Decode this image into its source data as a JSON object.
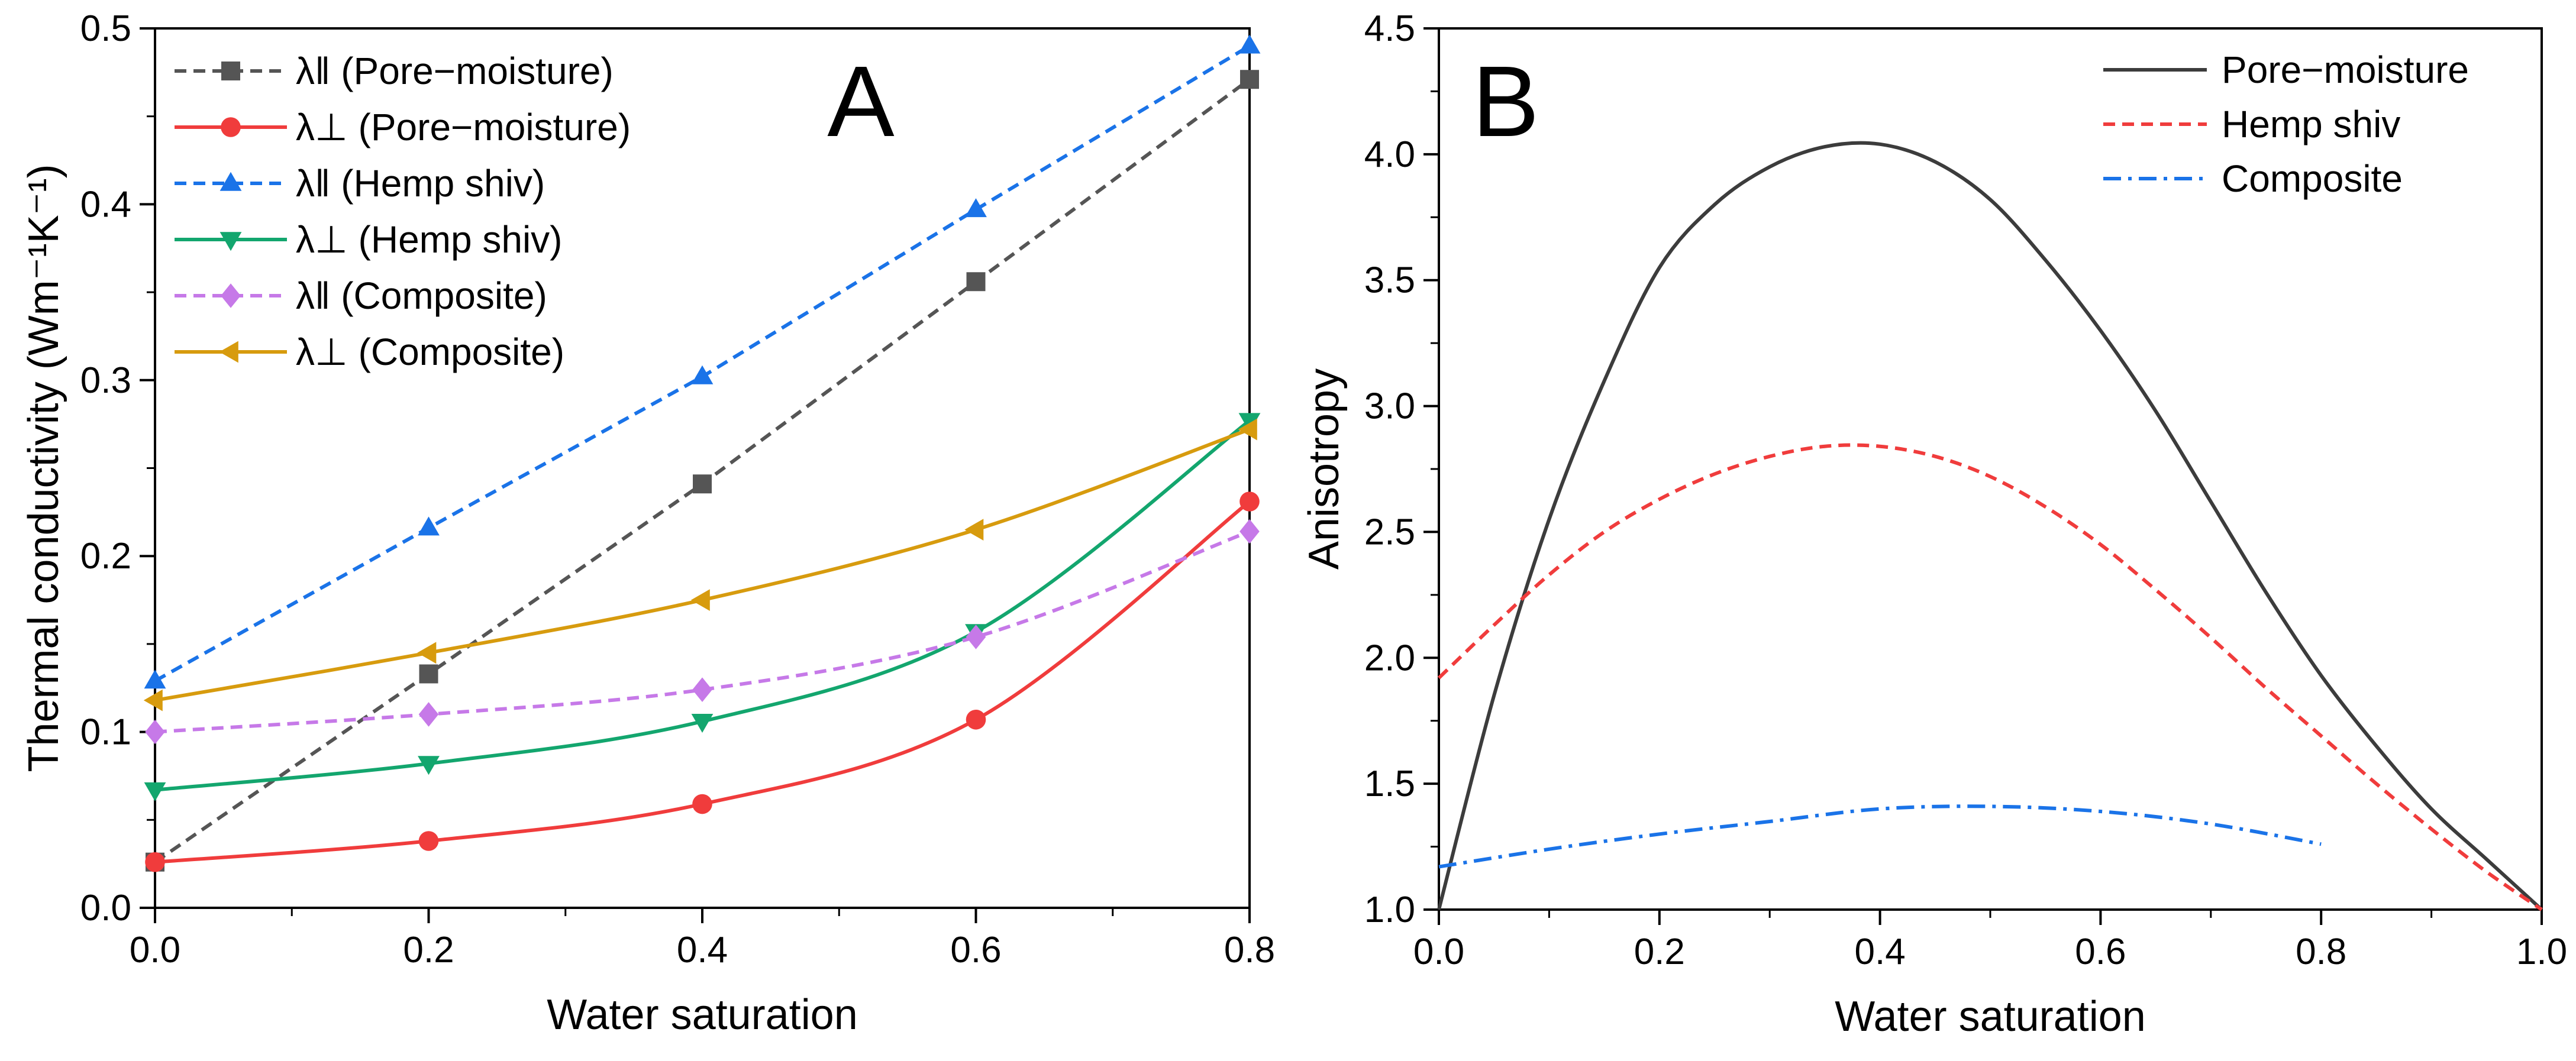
{
  "chart_data": [
    {
      "panel": "A",
      "type": "line",
      "xlabel": "Water saturation",
      "ylabel": "Thermal conductivity (Wm⁻¹K⁻¹)",
      "xlim": [
        0,
        0.8
      ],
      "ylim": [
        0,
        0.5
      ],
      "xticks": [
        "0.0",
        "0.2",
        "0.4",
        "0.6",
        "0.8"
      ],
      "yticks": [
        "0.0",
        "0.1",
        "0.2",
        "0.3",
        "0.4",
        "0.5"
      ],
      "legend_position": "top-left",
      "x": [
        0,
        0.2,
        0.4,
        0.6,
        0.8
      ],
      "series": [
        {
          "name": "λ‖ (Pore−moisture)",
          "color": "#555555",
          "marker": "square",
          "dash": "dash",
          "smooth": false,
          "values": [
            0.026,
            0.133,
            0.241,
            0.356,
            0.471
          ]
        },
        {
          "name": "λ⊥ (Pore−moisture)",
          "color": "#f03c3c",
          "marker": "circle",
          "dash": "solid",
          "smooth": true,
          "values": [
            0.026,
            0.038,
            0.059,
            0.107,
            0.231
          ]
        },
        {
          "name": "λ‖ (Hemp shiv)",
          "color": "#1a73e8",
          "marker": "triangle-up",
          "dash": "dash",
          "smooth": false,
          "values": [
            0.129,
            0.216,
            0.302,
            0.397,
            0.49
          ]
        },
        {
          "name": "λ⊥ (Hemp shiv)",
          "color": "#13a66e",
          "marker": "triangle-down",
          "dash": "solid",
          "smooth": true,
          "values": [
            0.067,
            0.082,
            0.106,
            0.157,
            0.277
          ]
        },
        {
          "name": "λ‖ (Composite)",
          "color": "#c679e8",
          "marker": "diamond",
          "dash": "dash",
          "smooth": true,
          "values": [
            0.1,
            0.11,
            0.124,
            0.154,
            0.214
          ]
        },
        {
          "name": "λ⊥ (Composite)",
          "color": "#d79b0e",
          "marker": "triangle-left",
          "dash": "solid",
          "smooth": true,
          "values": [
            0.118,
            0.145,
            0.175,
            0.215,
            0.272
          ]
        }
      ]
    },
    {
      "panel": "B",
      "type": "line",
      "xlabel": "Water saturation",
      "ylabel": "Anisotropy",
      "xlim": [
        0,
        1.0
      ],
      "ylim": [
        1.0,
        4.5
      ],
      "xticks": [
        "0.0",
        "0.2",
        "0.4",
        "0.6",
        "0.8",
        "1.0"
      ],
      "yticks": [
        "1.0",
        "1.5",
        "2.0",
        "2.5",
        "3.0",
        "3.5",
        "4.0",
        "4.5"
      ],
      "legend_position": "top-right",
      "series": [
        {
          "name": "Pore−moisture",
          "color": "#3c3c3c",
          "dash": "solid",
          "x": [
            0,
            0.05,
            0.1,
            0.15,
            0.2,
            0.25,
            0.3,
            0.35,
            0.4,
            0.45,
            0.5,
            0.55,
            0.6,
            0.65,
            0.7,
            0.75,
            0.8,
            0.85,
            0.9,
            0.95,
            1.0
          ],
          "values": [
            1.0,
            1.85,
            2.55,
            3.1,
            3.55,
            3.8,
            3.95,
            4.03,
            4.04,
            3.97,
            3.82,
            3.58,
            3.3,
            2.98,
            2.62,
            2.26,
            1.93,
            1.65,
            1.4,
            1.2,
            1.0
          ]
        },
        {
          "name": "Hemp shiv",
          "color": "#f03c3c",
          "dash": "dash",
          "x": [
            0,
            0.05,
            0.1,
            0.15,
            0.2,
            0.25,
            0.3,
            0.35,
            0.4,
            0.45,
            0.5,
            0.55,
            0.6,
            0.65,
            0.7,
            0.75,
            0.8,
            0.85,
            0.9,
            0.95,
            1.0
          ],
          "values": [
            1.92,
            2.13,
            2.33,
            2.5,
            2.63,
            2.73,
            2.8,
            2.84,
            2.84,
            2.8,
            2.72,
            2.6,
            2.45,
            2.27,
            2.08,
            1.88,
            1.69,
            1.5,
            1.32,
            1.15,
            1.0
          ]
        },
        {
          "name": "Composite",
          "color": "#1a73e8",
          "dash": "dashdot",
          "x": [
            0,
            0.1,
            0.2,
            0.3,
            0.4,
            0.5,
            0.6,
            0.7,
            0.8
          ],
          "values": [
            1.17,
            1.24,
            1.3,
            1.35,
            1.4,
            1.41,
            1.39,
            1.34,
            1.26
          ]
        }
      ]
    }
  ],
  "panels": {
    "a_letter": "A",
    "b_letter": "B"
  }
}
